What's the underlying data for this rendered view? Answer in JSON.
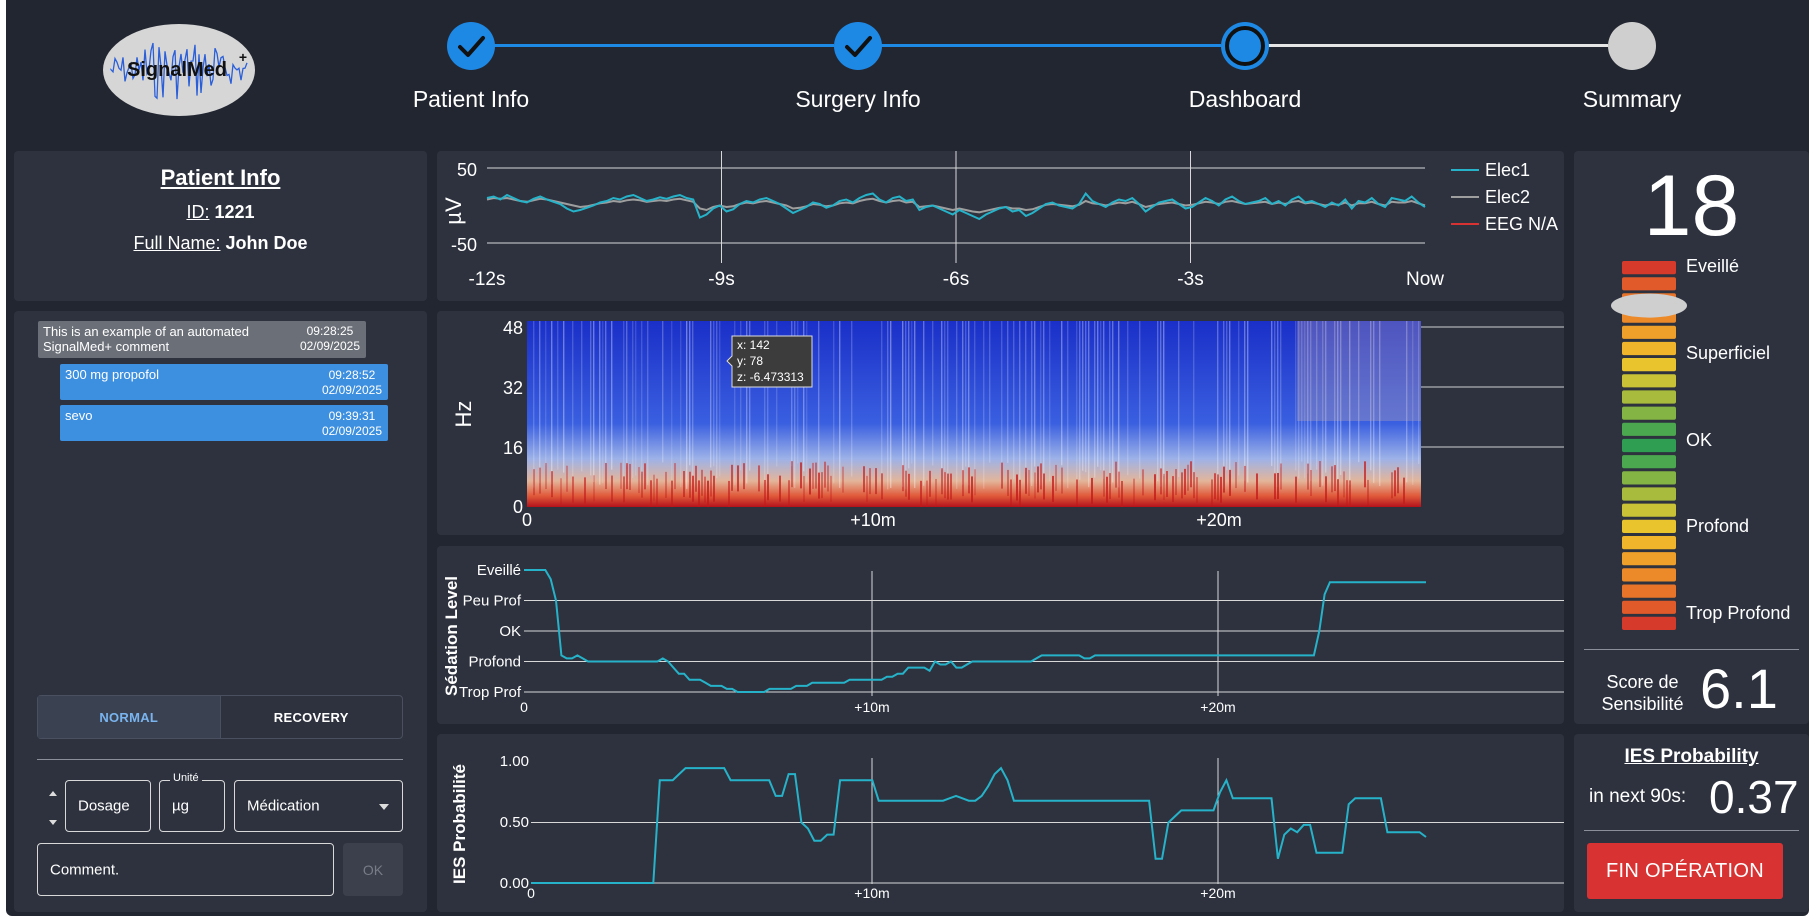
{
  "logo": {
    "text": "SignalMed",
    "sup": "+"
  },
  "stepper": {
    "steps": [
      {
        "label": "Patient Info",
        "state": "done"
      },
      {
        "label": "Surgery Info",
        "state": "done"
      },
      {
        "label": "Dashboard",
        "state": "active"
      },
      {
        "label": "Summary",
        "state": "pending"
      }
    ]
  },
  "patient": {
    "title": "Patient Info",
    "id_label": "ID:",
    "id_value": "1221",
    "name_label": "Full Name:",
    "name_value": "John Doe"
  },
  "comments": [
    {
      "text_line1": "This is an example of an automated",
      "text_line2": "SignalMed+ comment",
      "time": "09:28:25",
      "date": "02/09/2025",
      "kind": "auto"
    },
    {
      "text_line1": "300 mg propofol",
      "text_line2": "",
      "time": "09:28:52",
      "date": "02/09/2025",
      "kind": "user"
    },
    {
      "text_line1": "sevo",
      "text_line2": "",
      "time": "09:39:31",
      "date": "02/09/2025",
      "kind": "user"
    }
  ],
  "mode_toggle": {
    "normal": "NORMAL",
    "recovery": "RECOVERY",
    "selected": "normal"
  },
  "form": {
    "dosage_placeholder": "Dosage",
    "unit_legend": "Unité",
    "unit_value": "µg",
    "medication_placeholder": "Médication",
    "comment_placeholder": "Comment.",
    "ok_label": "OK"
  },
  "colors": {
    "accent": "#1e88e5",
    "teal": "#26b3c9",
    "gray_line": "#9e9e9e",
    "red": "#d83232"
  },
  "eeg_chart": {
    "ylabel": "µV",
    "y_ticks": [
      "50",
      "-50"
    ],
    "x_ticks": [
      "-12s",
      "-9s",
      "-6s",
      "-3s",
      "Now"
    ],
    "legend": [
      "Elec1",
      "Elec2",
      "EEG N/A"
    ],
    "elec1": [
      10,
      12,
      8,
      14,
      10,
      6,
      4,
      9,
      12,
      8,
      5,
      2,
      -4,
      -8,
      -6,
      -3,
      0,
      4,
      6,
      10,
      8,
      12,
      14,
      10,
      6,
      8,
      11,
      9,
      12,
      14,
      10,
      8,
      -16,
      -12,
      -4,
      0,
      -8,
      -5,
      2,
      6,
      4,
      8,
      10,
      6,
      2,
      -4,
      -10,
      -6,
      -2,
      4,
      2,
      -3,
      0,
      6,
      8,
      4,
      10,
      14,
      16,
      8,
      4,
      10,
      12,
      6,
      8,
      -6,
      -2,
      0,
      -4,
      -8,
      -12,
      -6,
      -10,
      -14,
      -18,
      -12,
      -8,
      -4,
      -2,
      -8,
      -6,
      -14,
      -10,
      -4,
      2,
      4,
      0,
      -2,
      -4,
      2,
      16,
      6,
      2,
      -2,
      4,
      8,
      6,
      10,
      2,
      -8,
      -2,
      4,
      6,
      8,
      2,
      -4,
      -2,
      4,
      10,
      6,
      0,
      8,
      12,
      6,
      2,
      4,
      6,
      10,
      2,
      6,
      0,
      8,
      12,
      4,
      6,
      2,
      -2,
      4,
      0,
      8,
      -4,
      6,
      4,
      10,
      2,
      -2,
      10,
      8,
      6,
      12,
      4,
      -2
    ],
    "elec2": [
      8,
      10,
      9,
      10,
      8,
      6,
      5,
      7,
      9,
      8,
      6,
      4,
      2,
      0,
      -2,
      -1,
      1,
      3,
      4,
      6,
      5,
      7,
      8,
      7,
      5,
      6,
      7,
      6,
      8,
      9,
      7,
      5,
      -4,
      -6,
      -2,
      0,
      -2,
      -1,
      2,
      4,
      3,
      5,
      6,
      4,
      2,
      0,
      -4,
      -3,
      -1,
      2,
      1,
      -1,
      0,
      3,
      4,
      3,
      6,
      8,
      9,
      6,
      4,
      6,
      7,
      4,
      5,
      -2,
      -1,
      0,
      -2,
      -4,
      -6,
      -4,
      -6,
      -8,
      -9,
      -7,
      -5,
      -3,
      -2,
      -4,
      -4,
      -6,
      -5,
      -2,
      1,
      2,
      1,
      0,
      -1,
      1,
      6,
      3,
      2,
      0,
      2,
      4,
      3,
      5,
      2,
      -2,
      0,
      2,
      3,
      4,
      2,
      0,
      1,
      3,
      5,
      4,
      2,
      5,
      6,
      4,
      2,
      3,
      4,
      5,
      2,
      4,
      2,
      5,
      6,
      3,
      4,
      2,
      0,
      2,
      1,
      4,
      0,
      3,
      3,
      5,
      2,
      0,
      5,
      4,
      4,
      6,
      3,
      0
    ]
  },
  "spectrogram": {
    "ylabel": "Hz",
    "y_ticks": [
      "48",
      "32",
      "16",
      "0"
    ],
    "x_ticks": [
      "0",
      "+10m",
      "+20m"
    ],
    "tooltip": {
      "x": "x: 142",
      "y": "y: 78",
      "z": "z: -6.473313"
    }
  },
  "sedation_chart": {
    "ylabel": "Sédation Level",
    "levels": [
      "Eveillé",
      "Peu Prof",
      "OK",
      "Profond",
      "Trop Prof"
    ],
    "x_ticks": [
      "0",
      "+10m",
      "+20m"
    ],
    "values": [
      4,
      4,
      4,
      4,
      4,
      3.7,
      3,
      1.2,
      1.1,
      1.1,
      1.2,
      1.1,
      1.0,
      1.0,
      1.0,
      1.0,
      1.0,
      1.0,
      1.0,
      1.0,
      1.0,
      1.0,
      1.0,
      1.0,
      1.0,
      1.0,
      1.1,
      1.0,
      0.8,
      0.6,
      0.6,
      0.4,
      0.4,
      0.4,
      0.3,
      0.2,
      0.2,
      0.2,
      0.1,
      0.1,
      0.0,
      0.0,
      0.0,
      0.0,
      0.0,
      0.0,
      0.1,
      0.1,
      0.1,
      0.1,
      0.1,
      0.2,
      0.2,
      0.2,
      0.3,
      0.3,
      0.3,
      0.3,
      0.3,
      0.3,
      0.3,
      0.4,
      0.4,
      0.4,
      0.4,
      0.4,
      0.4,
      0.4,
      0.5,
      0.5,
      0.6,
      0.6,
      0.8,
      0.8,
      0.8,
      0.8,
      0.7,
      1.0,
      0.9,
      0.9,
      1.0,
      0.8,
      0.8,
      0.9,
      1.0,
      1.0,
      1.0,
      1.0,
      1.0,
      1.0,
      1.0,
      1.0,
      1.0,
      1.0,
      1.0,
      1.0,
      1.1,
      1.2,
      1.2,
      1.2,
      1.2,
      1.2,
      1.2,
      1.2,
      1.2,
      1.1,
      1.1,
      1.2,
      1.2,
      1.2,
      1.2,
      1.2,
      1.2,
      1.2,
      1.2,
      1.2,
      1.2,
      1.2,
      1.2,
      1.2,
      1.2,
      1.2,
      1.2,
      1.2,
      1.2,
      1.2,
      1.2,
      1.2,
      1.2,
      1.2,
      1.2,
      1.2,
      1.2,
      1.2,
      1.2,
      1.2,
      1.2,
      1.2,
      1.2,
      1.2,
      1.2,
      1.2,
      1.2,
      1.2,
      1.2,
      1.2,
      1.2,
      1.2,
      1.2,
      2.0,
      3.2,
      3.6,
      3.6,
      3.6,
      3.6,
      3.6,
      3.6,
      3.6,
      3.6,
      3.6,
      3.6,
      3.6,
      3.6,
      3.6,
      3.6,
      3.6,
      3.6,
      3.6,
      3.6,
      3.6
    ]
  },
  "ies_chart": {
    "ylabel": "IES Probabilité",
    "y_ticks": [
      "1.00",
      "0.50",
      "0.00"
    ],
    "x_ticks": [
      "0",
      "+10m",
      "+20m"
    ],
    "values": [
      0,
      0,
      0,
      0,
      0,
      0,
      0,
      0,
      0,
      0,
      0,
      0,
      0,
      0,
      0,
      0,
      0,
      0,
      0,
      0,
      0.85,
      0.85,
      0.85,
      0.9,
      0.95,
      0.95,
      0.95,
      0.95,
      0.95,
      0.95,
      0.95,
      0.85,
      0.85,
      0.85,
      0.85,
      0.85,
      0.85,
      0.85,
      0.72,
      0.72,
      0.9,
      0.9,
      0.5,
      0.45,
      0.35,
      0.35,
      0.4,
      0.4,
      0.85,
      0.85,
      0.85,
      0.85,
      0.85,
      0.85,
      0.68,
      0.68,
      0.68,
      0.68,
      0.68,
      0.68,
      0.68,
      0.68,
      0.68,
      0.68,
      0.68,
      0.7,
      0.72,
      0.7,
      0.68,
      0.68,
      0.72,
      0.8,
      0.9,
      0.95,
      0.85,
      0.68,
      0.68,
      0.68,
      0.68,
      0.68,
      0.68,
      0.68,
      0.68,
      0.68,
      0.68,
      0.68,
      0.68,
      0.68,
      0.68,
      0.68,
      0.68,
      0.68,
      0.68,
      0.68,
      0.68,
      0.68,
      0.68,
      0.2,
      0.2,
      0.5,
      0.55,
      0.6,
      0.6,
      0.6,
      0.6,
      0.6,
      0.6,
      0.75,
      0.85,
      0.7,
      0.7,
      0.7,
      0.7,
      0.7,
      0.7,
      0.7,
      0.2,
      0.4,
      0.45,
      0.42,
      0.48,
      0.48,
      0.25,
      0.25,
      0.25,
      0.25,
      0.25,
      0.65,
      0.7,
      0.7,
      0.7,
      0.7,
      0.7,
      0.42,
      0.42,
      0.42,
      0.42,
      0.42,
      0.42,
      0.38
    ]
  },
  "score": {
    "value": "18",
    "levels": [
      "Eveillé",
      "Superficiel",
      "OK",
      "Profond",
      "Trop Profond"
    ],
    "gauge_level": 0.88,
    "sensitivity_label_line1": "Score de",
    "sensitivity_label_line2": "Sensibilité",
    "sensitivity_value": "6.1"
  },
  "ies": {
    "title": "IES Probability",
    "label": "in next 90s:",
    "value": "0.37",
    "end_button": "FIN OPÉRATION"
  }
}
